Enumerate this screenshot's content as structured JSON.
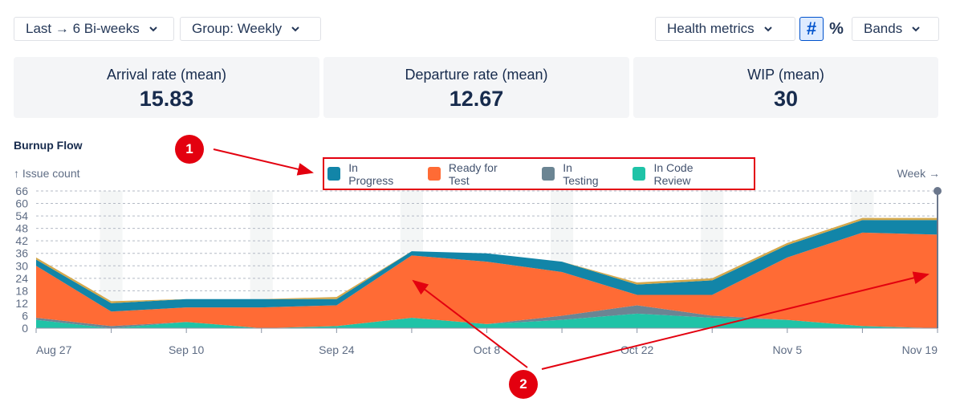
{
  "toolbar": {
    "range_label": "Last → 6 Bi-weeks",
    "group_label": "Group: Weekly",
    "health_label": "Health metrics",
    "count_toggle": "#",
    "percent_toggle": "%",
    "bands_label": "Bands"
  },
  "metrics": [
    {
      "label": "Arrival rate (mean)",
      "value": "15.83"
    },
    {
      "label": "Departure rate (mean)",
      "value": "12.67"
    },
    {
      "label": "WIP (mean)",
      "value": "30"
    }
  ],
  "annotations": [
    {
      "label": "1",
      "color": "#e3000f"
    },
    {
      "label": "2",
      "color": "#e3000f"
    }
  ],
  "chart_data": {
    "type": "area",
    "stacked": true,
    "title": "Burnup Flow",
    "ylabel": "↑ Issue count",
    "xlabel": "Week →",
    "ylim": [
      0,
      66
    ],
    "yticks": [
      0,
      6,
      12,
      18,
      24,
      30,
      36,
      42,
      48,
      54,
      60,
      66
    ],
    "x_tick_labels": [
      "Aug 27",
      "Sep 10",
      "Sep 24",
      "Oct 8",
      "Oct 22",
      "Nov 5",
      "Nov 19"
    ],
    "legend_placement": "top-center",
    "grid": true,
    "series": [
      {
        "name": "In Code Review",
        "color": "#1fc3a7",
        "values": [
          4,
          0,
          3,
          0,
          1,
          5,
          2,
          4,
          7,
          5,
          4,
          1,
          0
        ]
      },
      {
        "name": "In Testing",
        "color": "#6b8593",
        "values": [
          1,
          1,
          0,
          0,
          0,
          0,
          0,
          2,
          4,
          1,
          0,
          0,
          0
        ]
      },
      {
        "name": "Ready for Test",
        "color": "#ff6b35",
        "values": [
          25,
          7,
          7,
          10,
          10,
          30,
          30,
          21,
          5,
          10,
          30,
          45,
          45
        ]
      },
      {
        "name": "In Progress",
        "color": "#1285a8",
        "values": [
          3,
          4,
          4,
          4,
          3,
          2,
          4,
          5,
          5,
          7,
          6,
          6,
          7
        ]
      },
      {
        "name": "",
        "color": "#d4a84b",
        "values": [
          1,
          1,
          0,
          0,
          1,
          0,
          0,
          0,
          1,
          1,
          1,
          1,
          1
        ]
      }
    ]
  }
}
